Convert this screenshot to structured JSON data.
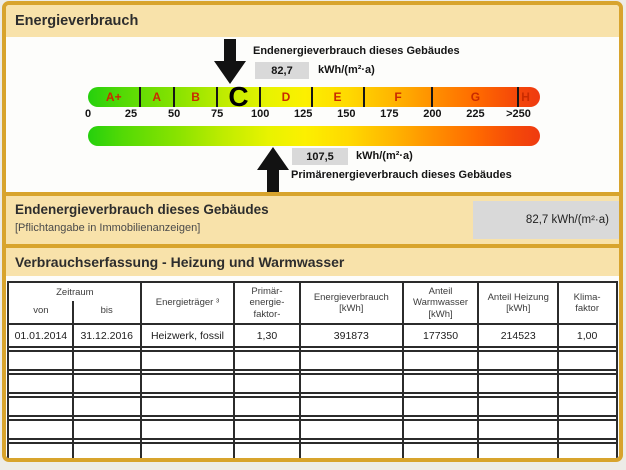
{
  "certificate": {
    "section_energieverbrauch": {
      "title": "Energieverbrauch",
      "end_energy": {
        "label": "Endenergieverbrauch dieses Gebäudes",
        "value": "82,7",
        "unit": "kWh/(m²·a)"
      },
      "primary_energy": {
        "label": "Primärenergieverbrauch dieses Gebäudes",
        "value": "107,5",
        "unit": "kWh/(m²·a)"
      },
      "scale": {
        "classes": [
          "A+",
          "A",
          "B",
          "C",
          "D",
          "E",
          "F",
          "G",
          "H"
        ],
        "current_class": "C",
        "ticks": [
          "0",
          "25",
          "50",
          "75",
          "100",
          "125",
          "150",
          "175",
          "200",
          "225",
          ">250"
        ]
      }
    },
    "section_endenergie": {
      "title": "Endenergieverbrauch dieses Gebäudes",
      "subtitle": "[Pflichtangabe in Immobilienanzeigen]",
      "value": "82,7 kWh/(m²·a)"
    },
    "section_verbrauchserfassung": {
      "title": "Verbrauchserfassung - Heizung und Warmwasser",
      "table": {
        "group_header": "Zeitraum",
        "columns": [
          {
            "lines": [
              "von"
            ]
          },
          {
            "lines": [
              "bis"
            ]
          },
          {
            "lines": [
              "Energieträger ³"
            ]
          },
          {
            "lines": [
              "Primär-",
              "energie-",
              "faktor-"
            ]
          },
          {
            "lines": [
              "Energieverbrauch",
              "[kWh]"
            ]
          },
          {
            "lines": [
              "Anteil",
              "Warmwasser",
              "[kWh]"
            ]
          },
          {
            "lines": [
              "Anteil Heizung",
              "[kWh]"
            ]
          },
          {
            "lines": [
              "Klima-",
              "faktor"
            ]
          }
        ],
        "rows": [
          [
            "01.01.2014",
            "31.12.2016",
            "Heizwerk, fossil",
            "1,30",
            "391873",
            "177350",
            "214523",
            "1,00"
          ]
        ],
        "empty_row_count": 5
      }
    },
    "colors": {
      "gold": "#d8a42d",
      "banner_tan": "#f8e2aa",
      "value_box_gray": "#d9d9d9",
      "scale_letter_red": "#c92b00"
    }
  }
}
